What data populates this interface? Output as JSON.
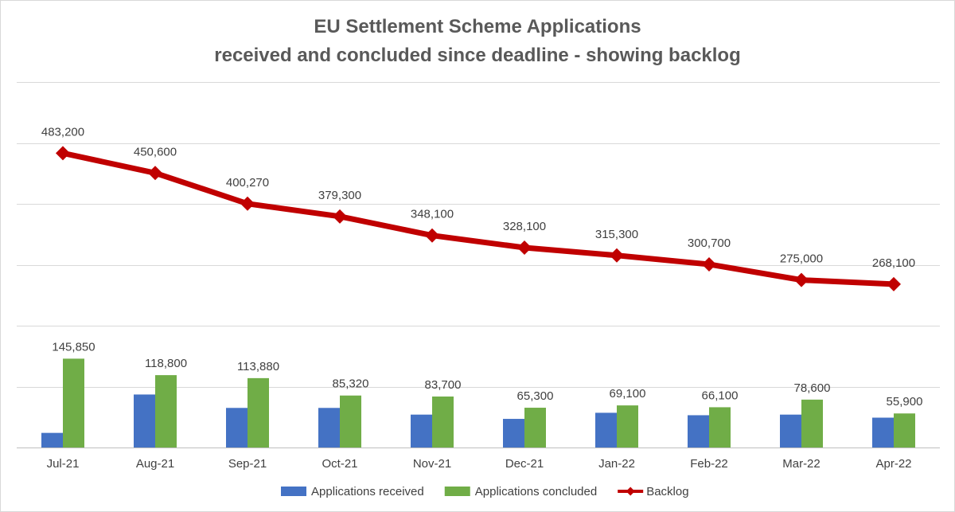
{
  "chart_data": {
    "type": "bar",
    "title_lines": [
      "EU Settlement Scheme Applications",
      "received and concluded since deadline - showing backlog"
    ],
    "categories": [
      "Jul-21",
      "Aug-21",
      "Sep-21",
      "Oct-21",
      "Nov-21",
      "Dec-21",
      "Jan-22",
      "Feb-22",
      "Mar-22",
      "Apr-22"
    ],
    "series": [
      {
        "name": "Applications received",
        "type": "bar",
        "color": "#4472c4",
        "values": [
          24000,
          87000,
          65000,
          65000,
          54000,
          47000,
          57000,
          53000,
          54000,
          49000
        ],
        "show_labels": false
      },
      {
        "name": "Applications concluded",
        "type": "bar",
        "color": "#70ad47",
        "values": [
          145850,
          118800,
          113880,
          85320,
          83700,
          65300,
          69100,
          66100,
          78600,
          55900
        ],
        "labels": [
          "145,850",
          "118,800",
          "113,880",
          "85,320",
          "83,700",
          "65,300",
          "69,100",
          "66,100",
          "78,600",
          "55,900"
        ],
        "show_labels": true
      },
      {
        "name": "Backlog",
        "type": "line",
        "color": "#c00000",
        "marker": "diamond",
        "values": [
          483200,
          450600,
          400270,
          379300,
          348100,
          328100,
          315300,
          300700,
          275000,
          268100
        ],
        "labels": [
          "483,200",
          "450,600",
          "400,270",
          "379,300",
          "348,100",
          "328,100",
          "315,300",
          "300,700",
          "275,000",
          "268,100"
        ],
        "show_labels": true
      }
    ],
    "ylim": [
      0,
      600000
    ],
    "y_tick_step": 100000,
    "y_axis_labels_shown": false,
    "grid": true,
    "legend_position": "bottom"
  }
}
